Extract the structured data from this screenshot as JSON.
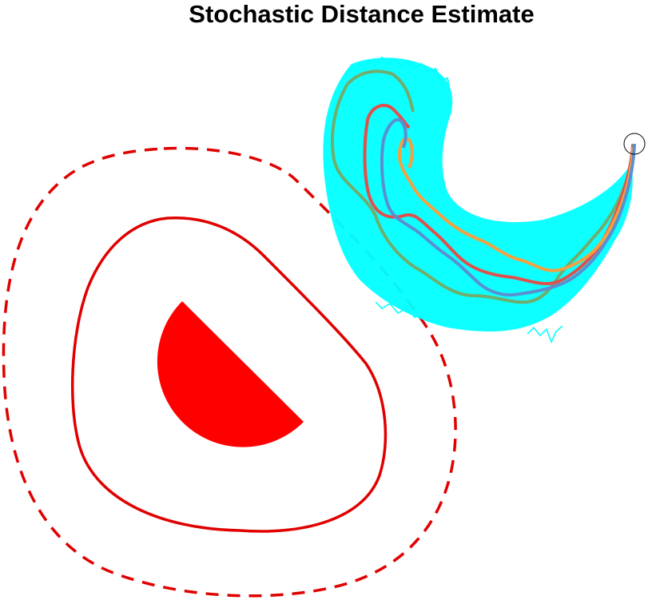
{
  "figure": {
    "title": "Stochastic Distance Estimate",
    "colors": {
      "obstacle": "#ff0000",
      "safe_boundary": "#e00000",
      "outer_boundary": "#e00000",
      "samples": "#00ffff",
      "trajectory_green": "#6fae6f",
      "trajectory_red": "#e0504c",
      "trajectory_orange": "#f4a040",
      "trajectory_blue": "#5a8fd0",
      "start_marker": "#000000"
    },
    "legend": []
  }
}
